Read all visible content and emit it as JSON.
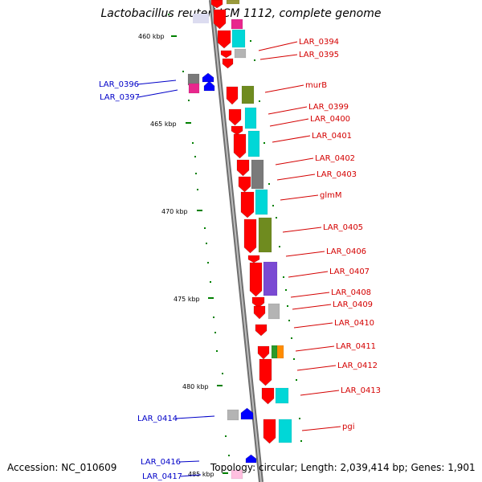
{
  "title": "Lactobacillus reuteri JCM 1112, complete genome",
  "footer": {
    "accession": "Accession: NC_010609",
    "topology": "Topology: circular; Length: 2,039,414 bp; Genes: 1,901"
  },
  "ruler": [
    "460 kbp",
    "465 kbp",
    "470 kbp",
    "475 kbp",
    "480 kbp",
    "485 kbp"
  ],
  "genes_right": [
    "LAR_0394",
    "LAR_0395",
    "murB",
    "LAR_0399",
    "LAR_0400",
    "LAR_0401",
    "LAR_0402",
    "LAR_0403",
    "glmM",
    "LAR_0405",
    "LAR_0406",
    "LAR_0407",
    "LAR_0408",
    "LAR_0409",
    "LAR_0410",
    "LAR_0411",
    "LAR_0412",
    "LAR_0413",
    "pgi"
  ],
  "genes_left": [
    "LAR_0396",
    "LAR_0397",
    "LAR_0414",
    "LAR_0416",
    "LAR_0417"
  ],
  "colors": {
    "forward_label": "#d40000",
    "reverse_label": "#0000c8",
    "forward_gene": "#ff0000",
    "reverse_gene": "#0000ff",
    "backbone": "#808080",
    "tick": "#008000"
  }
}
